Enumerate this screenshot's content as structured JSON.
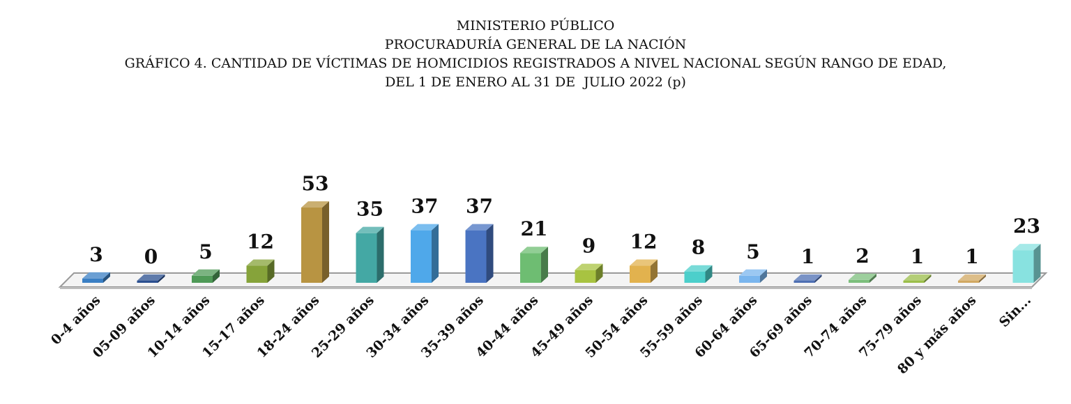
{
  "chart_data": {
    "type": "bar",
    "title": [
      "MINISTERIO PÚBLICO",
      "PROCURADURÍA GENERAL DE LA NACIÓN",
      "GRÁFICO 4. CANTIDAD DE VÍCTIMAS DE HOMICIDIOS REGISTRADOS A NIVEL NACIONAL SEGÚN RANGO DE EDAD,",
      "DEL 1 DE ENERO AL 31 DE  JULIO 2022 (p)"
    ],
    "categories": [
      "0-4 años",
      "05-09 años",
      "10-14 años",
      "15-17 años",
      "18-24 años",
      "25-29 años",
      "30-34 años",
      "35-39 años",
      "40-44 años",
      "45-49 años",
      "50-54 años",
      "55-59 años",
      "60-64 años",
      "65-69 años",
      "70-74 años",
      "75-79 años",
      "80 y más años",
      "Sin..."
    ],
    "values": [
      3,
      0,
      5,
      12,
      53,
      35,
      37,
      37,
      21,
      9,
      12,
      8,
      5,
      1,
      2,
      1,
      1,
      23
    ],
    "bar_colors": [
      "#3a7fc4",
      "#2a4f8f",
      "#4f9a57",
      "#86a33a",
      "#b89442",
      "#44a8a4",
      "#4fa8ea",
      "#4a74c2",
      "#6ebd72",
      "#a8c341",
      "#e2b24e",
      "#4ccfcb",
      "#7ab6ee",
      "#4e6fb3",
      "#7cbf7c",
      "#9bbe4a",
      "#d1a862",
      "#88e2e0"
    ],
    "ylim": [
      0,
      55
    ],
    "grid": false,
    "legend": "none"
  }
}
